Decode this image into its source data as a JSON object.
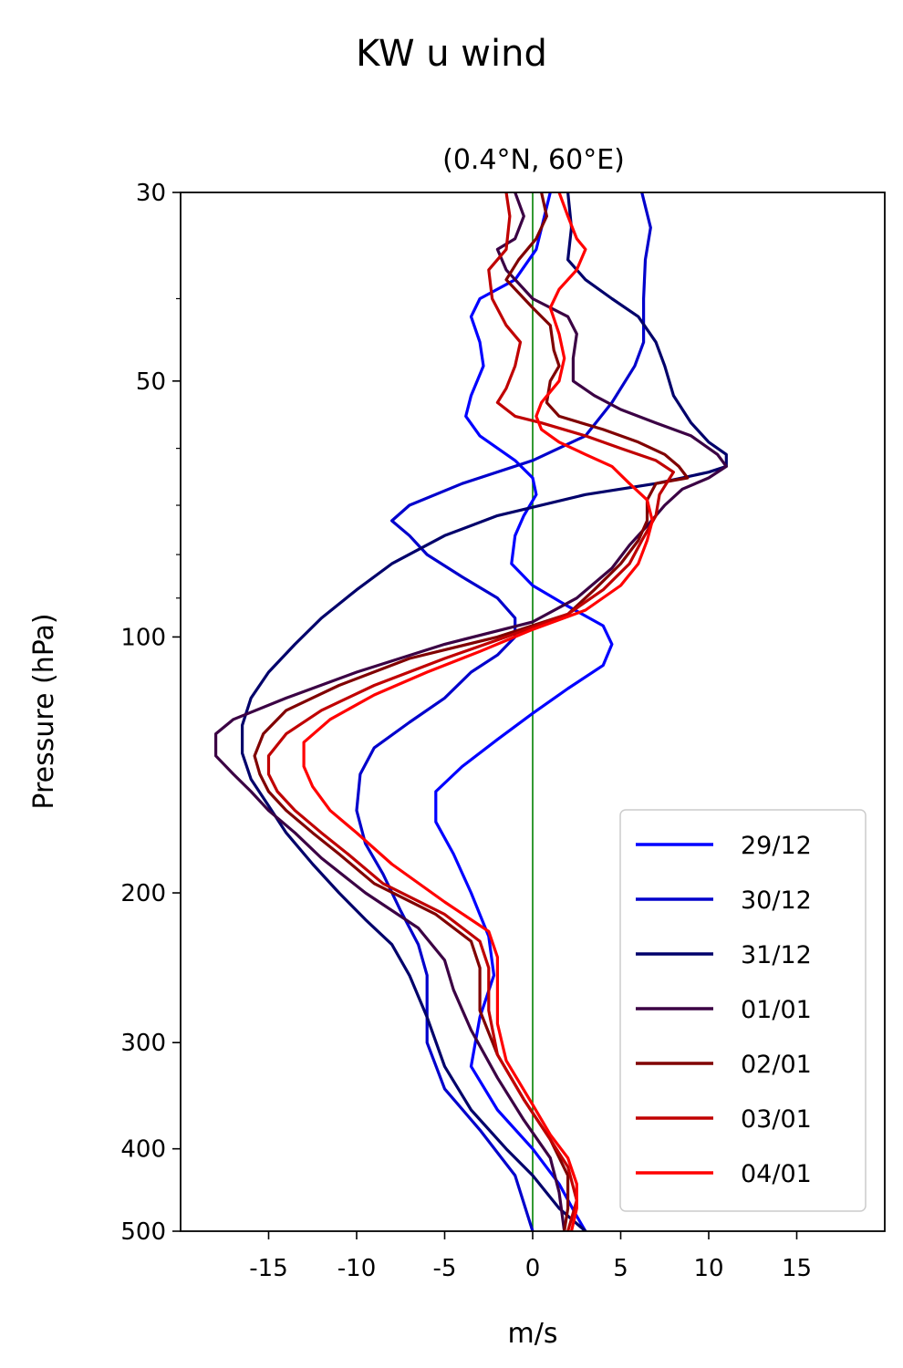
{
  "chart_data": {
    "type": "line",
    "title": "KW u wind",
    "subtitle": "(0.4°N, 60°E)",
    "xlabel": "m/s",
    "ylabel": "Pressure (hPa)",
    "xlim": [
      -20,
      20
    ],
    "ylim": [
      30,
      500
    ],
    "y_scale": "log",
    "y_inverted": true,
    "grid": false,
    "legend_position": "lower right",
    "x_ticks": [
      -15,
      -10,
      -5,
      0,
      5,
      10,
      15
    ],
    "x_tick_labels": [
      "-15",
      "-10",
      "-5",
      "0",
      "5",
      "10",
      "15"
    ],
    "y_ticks": [
      30,
      50,
      100,
      200,
      300,
      400,
      500
    ],
    "y_tick_labels": [
      "30",
      "50",
      "100",
      "200",
      "300",
      "400",
      "500"
    ],
    "y_minor_ticks": [
      40,
      60,
      70,
      80,
      90
    ],
    "reference_line": {
      "x": 0,
      "color": "#008000"
    },
    "series": [
      {
        "name": "29/12",
        "color": "#0000ff",
        "points": [
          [
            1.0,
            30
          ],
          [
            0.2,
            35
          ],
          [
            -1,
            38
          ],
          [
            -3,
            40
          ],
          [
            -3.5,
            42
          ],
          [
            -3,
            45
          ],
          [
            -2.8,
            48
          ],
          [
            -3.5,
            52
          ],
          [
            -3.8,
            55
          ],
          [
            -3,
            58
          ],
          [
            -1,
            62
          ],
          [
            0,
            65
          ],
          [
            0.2,
            68
          ],
          [
            -0.5,
            72
          ],
          [
            -1,
            76
          ],
          [
            -1.2,
            82
          ],
          [
            0,
            87
          ],
          [
            2,
            92
          ],
          [
            4,
            97
          ],
          [
            4.5,
            102
          ],
          [
            4,
            108
          ],
          [
            2,
            115
          ],
          [
            0,
            123
          ],
          [
            -2,
            132
          ],
          [
            -4,
            142
          ],
          [
            -5.5,
            152
          ],
          [
            -5.5,
            165
          ],
          [
            -4.5,
            180
          ],
          [
            -3.5,
            200
          ],
          [
            -2.5,
            225
          ],
          [
            -2.2,
            250
          ],
          [
            -3,
            280
          ],
          [
            -3.5,
            320
          ],
          [
            -2,
            360
          ],
          [
            0,
            400
          ],
          [
            1.5,
            440
          ],
          [
            2.5,
            480
          ],
          [
            3,
            500
          ]
        ]
      },
      {
        "name": "30/12",
        "color": "#0000cc",
        "points": [
          [
            6.2,
            30
          ],
          [
            6.7,
            33
          ],
          [
            6.4,
            36
          ],
          [
            6.3,
            40
          ],
          [
            6.3,
            45
          ],
          [
            5.8,
            48
          ],
          [
            4.5,
            53
          ],
          [
            3,
            58
          ],
          [
            0,
            62
          ],
          [
            -4,
            66
          ],
          [
            -7,
            70
          ],
          [
            -8,
            73
          ],
          [
            -7,
            76
          ],
          [
            -6,
            80
          ],
          [
            -4,
            85
          ],
          [
            -2,
            90
          ],
          [
            -1,
            95
          ],
          [
            -1,
            100
          ],
          [
            -2,
            105
          ],
          [
            -3.5,
            110
          ],
          [
            -5,
            118
          ],
          [
            -7,
            126
          ],
          [
            -9,
            135
          ],
          [
            -9.8,
            145
          ],
          [
            -10,
            160
          ],
          [
            -9.5,
            175
          ],
          [
            -8.5,
            190
          ],
          [
            -7.5,
            210
          ],
          [
            -6.5,
            230
          ],
          [
            -6,
            250
          ],
          [
            -6,
            280
          ],
          [
            -6,
            300
          ],
          [
            -5,
            340
          ],
          [
            -3,
            380
          ],
          [
            -1,
            430
          ],
          [
            0,
            500
          ]
        ]
      },
      {
        "name": "31/12",
        "color": "#00006b",
        "points": [
          [
            2,
            30
          ],
          [
            2.2,
            33
          ],
          [
            2,
            36
          ],
          [
            3,
            38
          ],
          [
            4.5,
            40
          ],
          [
            6,
            42
          ],
          [
            7,
            45
          ],
          [
            7.5,
            48
          ],
          [
            8,
            52
          ],
          [
            9,
            56
          ],
          [
            10,
            59
          ],
          [
            11,
            61
          ],
          [
            11,
            63
          ],
          [
            10,
            64
          ],
          [
            7,
            66
          ],
          [
            3,
            68
          ],
          [
            -2,
            72
          ],
          [
            -5,
            76
          ],
          [
            -8,
            82
          ],
          [
            -10,
            88
          ],
          [
            -12,
            95
          ],
          [
            -13.5,
            102
          ],
          [
            -15,
            110
          ],
          [
            -16,
            118
          ],
          [
            -16.5,
            127
          ],
          [
            -16.5,
            137
          ],
          [
            -16,
            147
          ],
          [
            -15,
            158
          ],
          [
            -14,
            170
          ],
          [
            -12.5,
            185
          ],
          [
            -11,
            200
          ],
          [
            -9.5,
            215
          ],
          [
            -8,
            230
          ],
          [
            -7,
            250
          ],
          [
            -6,
            280
          ],
          [
            -5,
            320
          ],
          [
            -3.5,
            360
          ],
          [
            -1.5,
            400
          ],
          [
            0,
            430
          ],
          [
            1.5,
            470
          ],
          [
            3,
            500
          ]
        ]
      },
      {
        "name": "01/01",
        "color": "#3b0044",
        "points": [
          [
            -1,
            30
          ],
          [
            -0.5,
            32
          ],
          [
            -1,
            34
          ],
          [
            -2,
            35
          ],
          [
            -1.5,
            37
          ],
          [
            0,
            40
          ],
          [
            2,
            42
          ],
          [
            2.5,
            44
          ],
          [
            2.3,
            47
          ],
          [
            2.3,
            50
          ],
          [
            3.5,
            52
          ],
          [
            5,
            54
          ],
          [
            7,
            56
          ],
          [
            9,
            58
          ],
          [
            10.5,
            61
          ],
          [
            11,
            63
          ],
          [
            10,
            65
          ],
          [
            8.5,
            67
          ],
          [
            7.5,
            70
          ],
          [
            6.5,
            74
          ],
          [
            5.5,
            78
          ],
          [
            4.5,
            83
          ],
          [
            2.5,
            90
          ],
          [
            0,
            96
          ],
          [
            -5,
            102
          ],
          [
            -10,
            110
          ],
          [
            -14,
            118
          ],
          [
            -17,
            125
          ],
          [
            -18,
            130
          ],
          [
            -18,
            138
          ],
          [
            -17,
            145
          ],
          [
            -16,
            152
          ],
          [
            -15,
            160
          ],
          [
            -13.5,
            170
          ],
          [
            -12,
            182
          ],
          [
            -9.5,
            200
          ],
          [
            -6.5,
            220
          ],
          [
            -5,
            240
          ],
          [
            -4.5,
            260
          ],
          [
            -3.5,
            290
          ],
          [
            -2,
            330
          ],
          [
            -0.5,
            370
          ],
          [
            1,
            410
          ],
          [
            1.5,
            450
          ],
          [
            1.8,
            500
          ]
        ]
      },
      {
        "name": "02/01",
        "color": "#800000",
        "points": [
          [
            0.5,
            30
          ],
          [
            0.8,
            32
          ],
          [
            0.2,
            34
          ],
          [
            -0.8,
            36
          ],
          [
            -1.5,
            38
          ],
          [
            0,
            41
          ],
          [
            1,
            43
          ],
          [
            1.2,
            46
          ],
          [
            1.5,
            48
          ],
          [
            1,
            50
          ],
          [
            0.8,
            53
          ],
          [
            1.5,
            55
          ],
          [
            4,
            57
          ],
          [
            6,
            59
          ],
          [
            7.5,
            61
          ],
          [
            8.3,
            63
          ],
          [
            8.8,
            65
          ],
          [
            7,
            66
          ],
          [
            6.5,
            69
          ],
          [
            6.5,
            73
          ],
          [
            6,
            77
          ],
          [
            5,
            82
          ],
          [
            3.5,
            88
          ],
          [
            2,
            94
          ],
          [
            -2,
            100
          ],
          [
            -7,
            106
          ],
          [
            -11,
            114
          ],
          [
            -14,
            122
          ],
          [
            -15.3,
            130
          ],
          [
            -15.8,
            138
          ],
          [
            -15.5,
            145
          ],
          [
            -15,
            152
          ],
          [
            -14,
            160
          ],
          [
            -12.5,
            170
          ],
          [
            -11,
            180
          ],
          [
            -9,
            195
          ],
          [
            -5.5,
            212
          ],
          [
            -3.5,
            228
          ],
          [
            -3,
            245
          ],
          [
            -3,
            275
          ],
          [
            -2,
            310
          ],
          [
            -0.5,
            350
          ],
          [
            1,
            390
          ],
          [
            2,
            430
          ],
          [
            2,
            470
          ],
          [
            1.8,
            500
          ]
        ]
      },
      {
        "name": "03/01",
        "color": "#c00000",
        "points": [
          [
            -1.5,
            30
          ],
          [
            -1.3,
            32
          ],
          [
            -1.5,
            35
          ],
          [
            -2.5,
            37
          ],
          [
            -2.3,
            40
          ],
          [
            -1.5,
            43
          ],
          [
            -0.7,
            45
          ],
          [
            -1,
            48
          ],
          [
            -1.5,
            51
          ],
          [
            -2,
            53
          ],
          [
            -1,
            55
          ],
          [
            0.5,
            56
          ],
          [
            3,
            58
          ],
          [
            5,
            60
          ],
          [
            7,
            62
          ],
          [
            8,
            64
          ],
          [
            7.2,
            68
          ],
          [
            7,
            72
          ],
          [
            6.2,
            77
          ],
          [
            5.5,
            82
          ],
          [
            4,
            88
          ],
          [
            2,
            94
          ],
          [
            -1.5,
            100
          ],
          [
            -5,
            106
          ],
          [
            -9,
            114
          ],
          [
            -12,
            122
          ],
          [
            -14,
            130
          ],
          [
            -15,
            138
          ],
          [
            -15,
            145
          ],
          [
            -14.5,
            152
          ],
          [
            -13.5,
            160
          ],
          [
            -12,
            170
          ],
          [
            -10.5,
            180
          ],
          [
            -8.5,
            195
          ],
          [
            -5,
            212
          ],
          [
            -3,
            228
          ],
          [
            -2.5,
            245
          ],
          [
            -2.5,
            275
          ],
          [
            -2,
            310
          ],
          [
            -0.5,
            350
          ],
          [
            1,
            390
          ],
          [
            2,
            420
          ],
          [
            2.5,
            460
          ],
          [
            2,
            500
          ]
        ]
      },
      {
        "name": "04/01",
        "color": "#ff0000",
        "points": [
          [
            1.5,
            30
          ],
          [
            2,
            32
          ],
          [
            2.5,
            34
          ],
          [
            3,
            35
          ],
          [
            2.5,
            37
          ],
          [
            1.5,
            39
          ],
          [
            1,
            41
          ],
          [
            1.5,
            44
          ],
          [
            1.8,
            47
          ],
          [
            1.5,
            50
          ],
          [
            0.5,
            53
          ],
          [
            0.2,
            55
          ],
          [
            0.5,
            57
          ],
          [
            1.5,
            59
          ],
          [
            3,
            61
          ],
          [
            4.5,
            63
          ],
          [
            5.5,
            66
          ],
          [
            6.5,
            69
          ],
          [
            6.8,
            73
          ],
          [
            6.5,
            77
          ],
          [
            6,
            82
          ],
          [
            5,
            87
          ],
          [
            3,
            93
          ],
          [
            0,
            98
          ],
          [
            -3,
            104
          ],
          [
            -6,
            110
          ],
          [
            -9,
            117
          ],
          [
            -11.5,
            125
          ],
          [
            -13,
            133
          ],
          [
            -13,
            142
          ],
          [
            -12.5,
            150
          ],
          [
            -11.5,
            160
          ],
          [
            -10,
            170
          ],
          [
            -8,
            185
          ],
          [
            -5,
            205
          ],
          [
            -2.5,
            222
          ],
          [
            -2,
            238
          ],
          [
            -2,
            260
          ],
          [
            -2,
            285
          ],
          [
            -1.5,
            315
          ],
          [
            0,
            355
          ],
          [
            1,
            385
          ],
          [
            2,
            410
          ],
          [
            2.5,
            440
          ],
          [
            2.5,
            470
          ],
          [
            2.2,
            500
          ]
        ]
      }
    ]
  }
}
